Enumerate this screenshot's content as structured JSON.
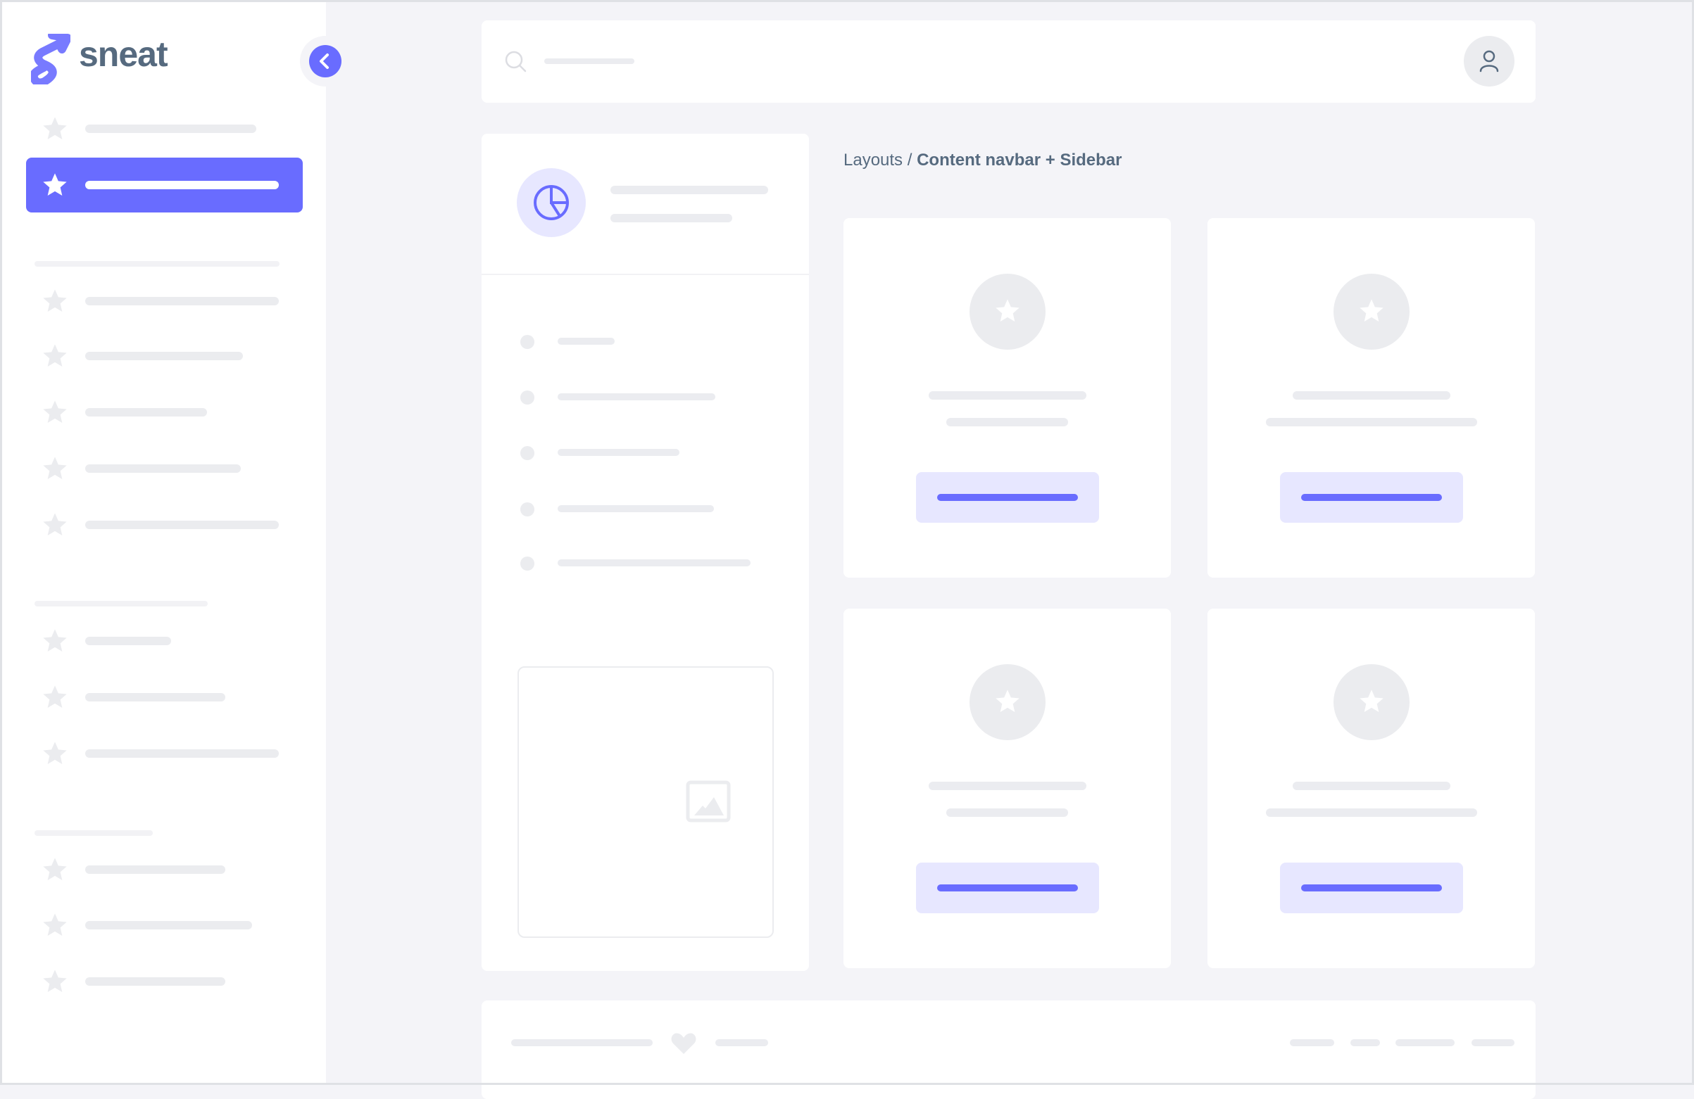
{
  "brand": {
    "name": "sneat",
    "logo_color": "#696cff",
    "text_color": "#566a7f"
  },
  "colors": {
    "primary": "#696cff",
    "primary_light": "#e7e7ff",
    "placeholder": "#ebecef",
    "background": "#f4f4f8"
  },
  "sidebar": {
    "collapse_icon": "chevron-left-icon",
    "item_icon": "star-icon",
    "active_index": 1
  },
  "navbar": {
    "search_icon": "search-icon",
    "user_icon": "user-icon"
  },
  "breadcrumb": {
    "parent": "Layouts",
    "separator": "/",
    "current": "Content navbar + Sidebar"
  },
  "left_panel": {
    "header_icon": "pie-chart-icon",
    "image_icon": "image-icon"
  },
  "footer": {
    "heart_icon": "heart-icon"
  }
}
